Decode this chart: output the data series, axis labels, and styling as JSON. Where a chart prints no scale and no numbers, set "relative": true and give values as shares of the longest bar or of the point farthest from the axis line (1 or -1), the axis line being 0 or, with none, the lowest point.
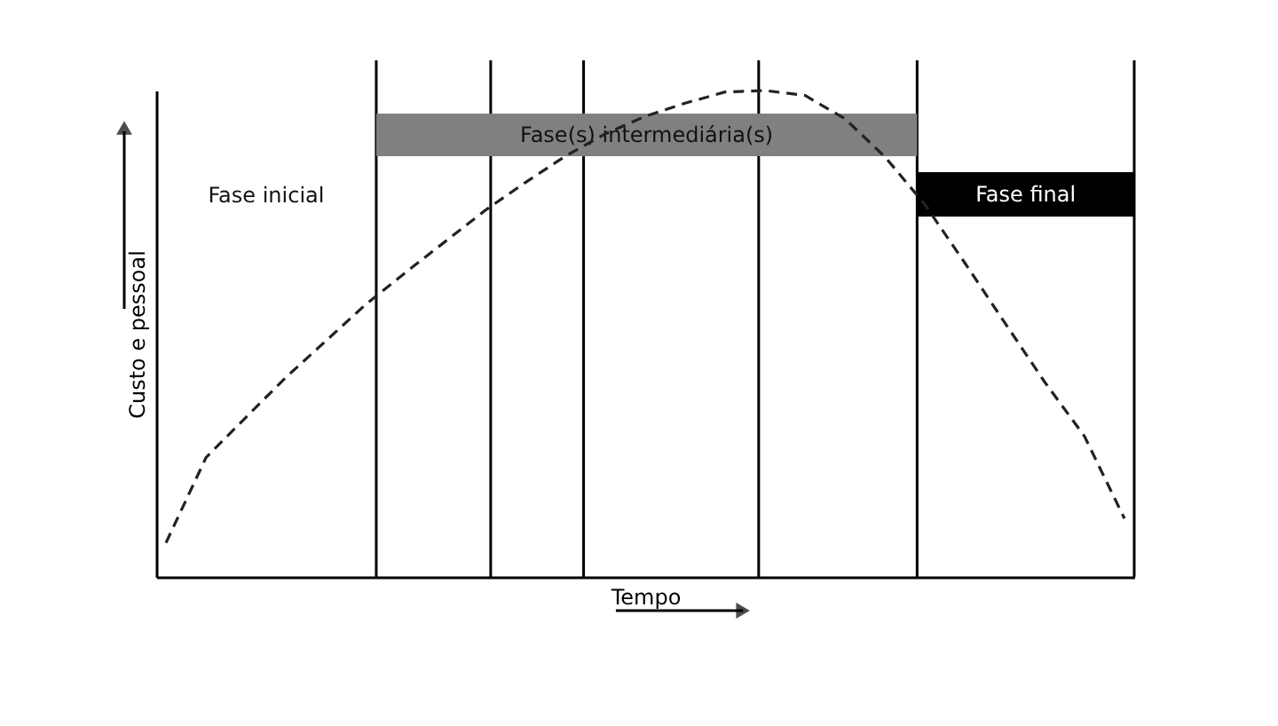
{
  "chart_data": {
    "type": "line",
    "relative": true,
    "xlabel": "Tempo",
    "ylabel": "Custo e pessoal",
    "line_style": "dashed",
    "categories": [
      null,
      null,
      null,
      null,
      null,
      null,
      null,
      null,
      null,
      null,
      null,
      null,
      null,
      null,
      null,
      null,
      null,
      null,
      null,
      null,
      null,
      null,
      null,
      null,
      null
    ],
    "series": [
      {
        "color": "#222222",
        "values": [
          0.07,
          0.245,
          0.328,
          0.41,
          0.485,
          0.56,
          0.626,
          0.69,
          0.754,
          0.811,
          0.865,
          0.911,
          0.947,
          0.974,
          0.997,
          1,
          0.99,
          0.942,
          0.864,
          0.766,
          0.646,
          0.523,
          0.401,
          0.289,
          0.12
        ]
      }
    ],
    "annotations": [
      "Fase inicial",
      "Fase(s) intermediária(s)",
      "Fase final"
    ]
  }
}
